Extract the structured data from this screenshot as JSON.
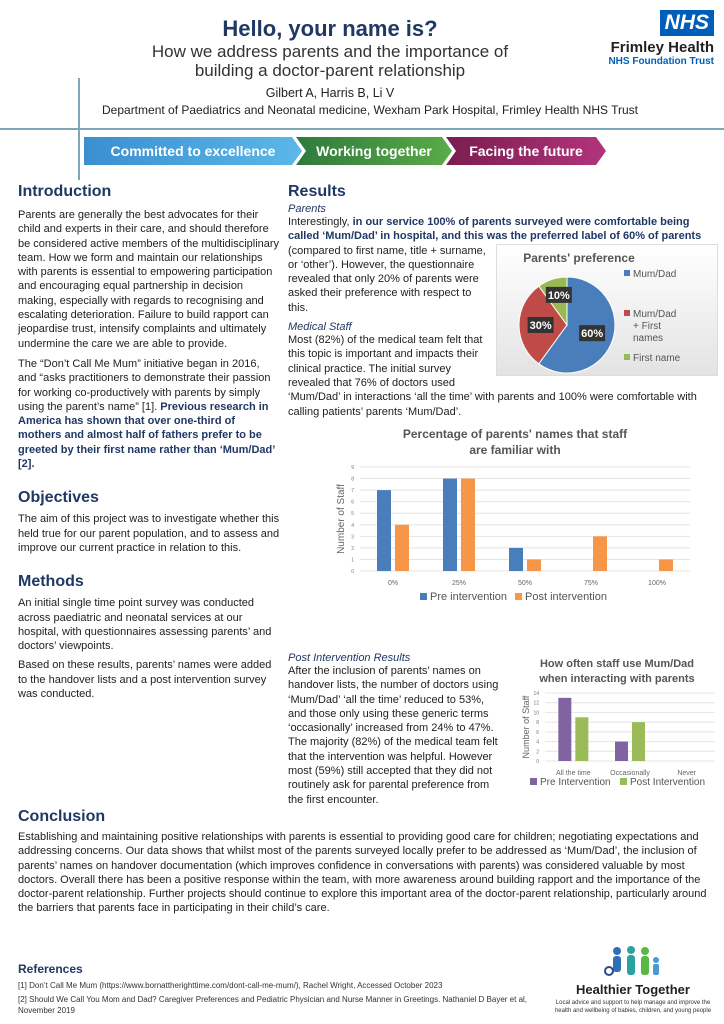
{
  "header": {
    "title": "Hello, your name is?",
    "subtitle_line1": "How we address parents and the importance of",
    "subtitle_line2": "building a doctor-parent relationship",
    "authors": "Gilbert A, Harris B, Li V",
    "department": "Department of Paediatrics and Neonatal medicine, Wexham Park Hospital, Frimley Health NHS Trust"
  },
  "logo": {
    "nhs": "NHS",
    "org": "Frimley Health",
    "trust": "NHS Foundation Trust"
  },
  "banner": [
    {
      "label": "Committed to excellence",
      "color": "#3a8fd0"
    },
    {
      "label": "Working together",
      "color": "#3f8f3f"
    },
    {
      "label": "Facing the future",
      "color": "#9c2a6b"
    }
  ],
  "introduction": {
    "heading": "Introduction",
    "p1": "Parents are generally the best advocates for their child and experts in their care, and should therefore be considered active members of the multidisciplinary team. How we form and maintain our relationships with parents is essential to empowering participation and encouraging equal partnership in decision making, especially with regards to recognising and escalating deterioration. Failure to build rapport can jeopardise trust, intensify complaints and ultimately undermine the care we are able to provide.",
    "p2": "The “Don’t Call Me Mum” initiative began in 2016, and “asks practitioners to demonstrate their passion for working co-productively with parents by simply using the parent’s name” [1].",
    "p2_bold": "Previous research in America has shown that over one-third of mothers and almost half of fathers prefer to be greeted by their first name rather than ‘Mum/Dad’ [2]."
  },
  "objectives": {
    "heading": "Objectives",
    "text": "The aim of this project was to investigate whether this held true for our parent population, and to assess and improve our current practice in relation to this."
  },
  "methods": {
    "heading": "Methods",
    "p1": "An initial single time point survey was conducted across paediatric and neonatal services at our hospital, with questionnaires assessing parents’ and doctors’ viewpoints.",
    "p2": "Based on these results, parents’ names were added to the handover lists and a post intervention survey was conducted."
  },
  "results": {
    "heading": "Results",
    "parents_label": "Parents",
    "parents_pre": "Interestingly, ",
    "parents_bold": "in our service 100% of parents surveyed were comfortable being called ‘Mum/Dad’ in hospital, and this was the preferred label of 60% of parents",
    "parents_post": " (compared to first name, title + surname, or ‘other’). However, the questionnaire revealed that only 20% of parents were asked their preference with respect to this.",
    "staff_label": "Medical Staff",
    "staff_text": "Most (82%) of the medical team felt that this topic is important and impacts their clinical practice. The initial survey revealed that 76% of doctors used ‘Mum/Dad’ in interactions ‘all the time’ with parents and 100% were comfortable with calling patients’ parents ‘Mum/Dad’.",
    "post_label": "Post Intervention Results",
    "post_text": "After the inclusion of parents’ names on handover lists, the number of doctors using ‘Mum/Dad’ ‘all the time’ reduced to 53%, and those only using these generic terms ‘occasionally’ increased from 24% to 47%. The majority (82%) of the medical team felt that the intervention was helpful. However most (59%) still accepted that they did not routinely ask for parental preference from the first encounter."
  },
  "conclusion": {
    "heading": "Conclusion",
    "text": "Establishing and maintaining positive relationships with parents is essential to providing good care for children; negotiating expectations and addressing concerns. Our data shows that whilst most of the parents surveyed locally prefer to be addressed as ‘Mum/Dad’, the inclusion of parents’ names on handover documentation (which improves confidence in conversations with parents) was considered valuable by most doctors. Overall there has been a positive response within the team, with more awareness around building rapport and the importance of the doctor-parent relationship. Further projects should continue to explore this important area of the doctor-parent relationship, particularly around the barriers that parents face in participating in their child’s care."
  },
  "references": {
    "heading": "References",
    "items": [
      "[1] Don’t Call Me Mum (https://www.bornattherighttime.com/dont-call-me-mum/), Rachel Wright, Accessed October 2023",
      "[2] Should We Call You Mom and Dad? Caregiver Preferences and Pediatric Physician and Nurse Manner in Greetings. Nathaniel D Bayer et al, November 2019"
    ]
  },
  "footer_logo": {
    "name": "Healthier Together",
    "tagline": "Local advice and support to help manage and improve the health and wellbeing of babies, children, and young people"
  },
  "chart_data": [
    {
      "type": "pie",
      "title": "Parents' preference",
      "labels": [
        "Mum/Dad",
        "Mum/Dad + First names",
        "First name"
      ],
      "values": [
        60,
        30,
        10
      ],
      "data_labels": [
        "60%",
        "30%",
        "10%"
      ],
      "colors": [
        "#4a7ebb",
        "#be4b48",
        "#98b954"
      ],
      "legend": "right"
    },
    {
      "type": "bar",
      "title": "Percentage of parents' names that staff are familiar with",
      "categories": [
        "0%",
        "25%",
        "50%",
        "75%",
        "100%"
      ],
      "ylabel": "Number of Staff",
      "ylim": [
        0,
        9
      ],
      "yticks": [
        0,
        1,
        2,
        3,
        4,
        5,
        6,
        7,
        8,
        9
      ],
      "grid": true,
      "legend": "bottom",
      "series": [
        {
          "name": "Pre intervention",
          "values": [
            7,
            8,
            2,
            0,
            0
          ],
          "color": "#4a7ebb"
        },
        {
          "name": "Post intervention",
          "values": [
            4,
            8,
            1,
            3,
            1
          ],
          "color": "#f79646"
        }
      ]
    },
    {
      "type": "bar",
      "title": "How often staff use Mum/Dad when interacting with parents",
      "categories": [
        "All the time",
        "Occasionally",
        "Never"
      ],
      "ylabel": "Number of Staff",
      "ylim": [
        0,
        14
      ],
      "yticks": [
        0,
        2,
        4,
        6,
        8,
        10,
        12,
        14
      ],
      "grid": true,
      "legend": "bottom",
      "series": [
        {
          "name": "Pre Intervention",
          "values": [
            13,
            4,
            0
          ],
          "color": "#8064a2"
        },
        {
          "name": "Post Intervention",
          "values": [
            9,
            8,
            0
          ],
          "color": "#9bbb59"
        }
      ]
    }
  ]
}
